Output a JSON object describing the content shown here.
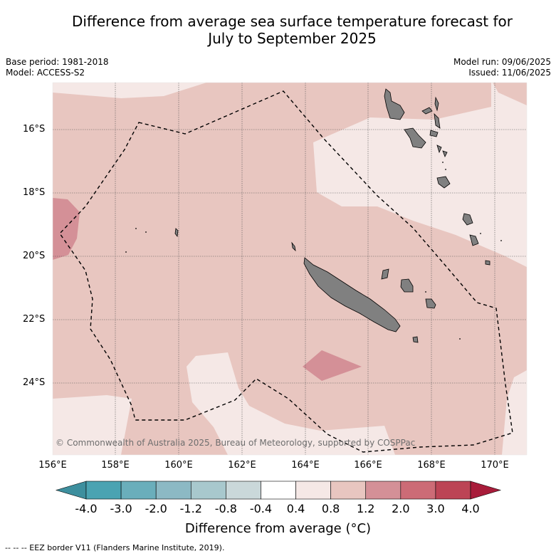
{
  "title_line1": "Difference from average sea surface temperature forecast for",
  "title_line2": "July to September 2025",
  "meta_left": [
    "Base period: 1981-2018",
    "Model: ACCESS-S2"
  ],
  "meta_right": [
    "Model run: 09/06/2025",
    "Issued: 11/06/2025"
  ],
  "lat_labels": [
    "16°S",
    "18°S",
    "20°S",
    "22°S",
    "24°S"
  ],
  "lon_labels": [
    "156°E",
    "158°E",
    "160°E",
    "162°E",
    "164°E",
    "166°E",
    "168°E",
    "170°E"
  ],
  "copyright": "© Commonwealth of Australia 2025, Bureau of Meteorology, supported by COSPPac",
  "colorbar": {
    "ticks": [
      "-4.0",
      "-3.0",
      "-2.0",
      "-1.2",
      "-0.8",
      "-0.4",
      "0.4",
      "0.8",
      "1.2",
      "2.0",
      "3.0",
      "4.0"
    ],
    "colors": [
      "#3d8f9e",
      "#4aa3b2",
      "#6aaebb",
      "#8cb9c4",
      "#a8c8cd",
      "#cad8da",
      "#ffffff",
      "#f5e8e6",
      "#e8c6c0",
      "#d49097",
      "#cc6b76",
      "#bc4455",
      "#a81c3a"
    ],
    "label": "Difference from average (°C)"
  },
  "footer": "--  --  -- EEZ border V11 (Flanders Marine Institute, 2019)."
}
